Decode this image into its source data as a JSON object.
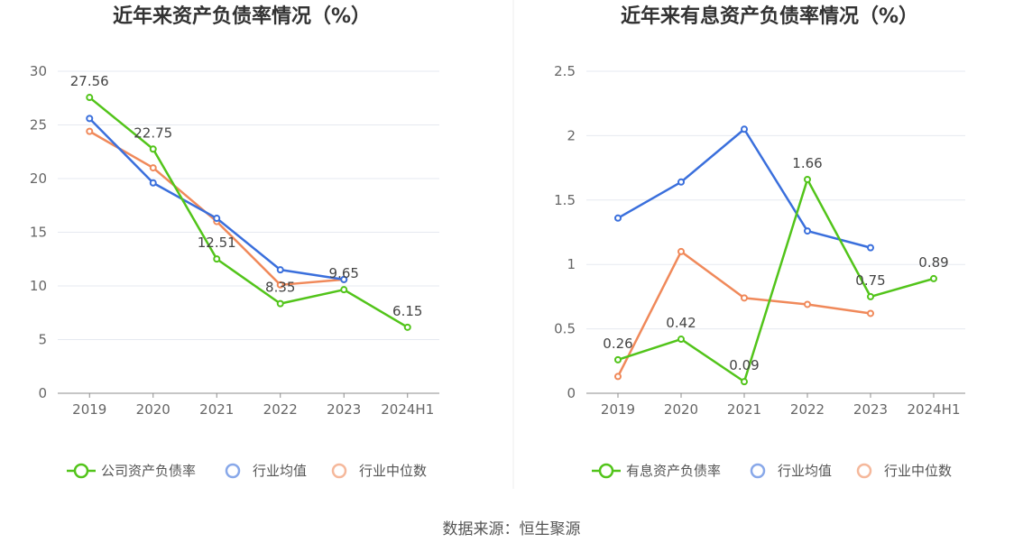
{
  "source": "数据来源：恒生聚源",
  "chart_data": [
    {
      "type": "line",
      "title": "近年来资产负债率情况（%）",
      "categories": [
        "2019",
        "2020",
        "2021",
        "2022",
        "2023",
        "2024H1"
      ],
      "ylim": [
        0,
        30
      ],
      "yticks": [
        0,
        5,
        10,
        15,
        20,
        25,
        30
      ],
      "grid": true,
      "legend_position": "bottom",
      "series": [
        {
          "name": "公司资产负债率",
          "color": "#52c41a",
          "values": [
            27.56,
            22.75,
            12.51,
            8.35,
            9.65,
            6.15
          ],
          "labeled": true
        },
        {
          "name": "行业均值",
          "color": "#3a6fdc",
          "values": [
            25.6,
            19.6,
            16.3,
            11.5,
            10.6,
            null
          ],
          "labeled": false
        },
        {
          "name": "行业中位数",
          "color": "#f0895a",
          "values": [
            24.4,
            21.0,
            16.0,
            10.1,
            10.6,
            null
          ],
          "labeled": false
        }
      ]
    },
    {
      "type": "line",
      "title": "近年来有息资产负债率情况（%）",
      "categories": [
        "2019",
        "2020",
        "2021",
        "2022",
        "2023",
        "2024H1"
      ],
      "ylim": [
        0,
        2.5
      ],
      "yticks": [
        0,
        0.5,
        1,
        1.5,
        2,
        2.5
      ],
      "grid": true,
      "legend_position": "bottom",
      "series": [
        {
          "name": "有息资产负债率",
          "color": "#52c41a",
          "values": [
            0.26,
            0.42,
            0.09,
            1.66,
            0.75,
            0.89
          ],
          "labeled": true
        },
        {
          "name": "行业均值",
          "color": "#3a6fdc",
          "values": [
            1.36,
            1.64,
            2.05,
            1.26,
            1.13,
            null
          ],
          "labeled": false
        },
        {
          "name": "行业中位数",
          "color": "#f0895a",
          "values": [
            0.13,
            1.1,
            0.74,
            0.69,
            0.62,
            null
          ],
          "labeled": false
        }
      ]
    }
  ]
}
